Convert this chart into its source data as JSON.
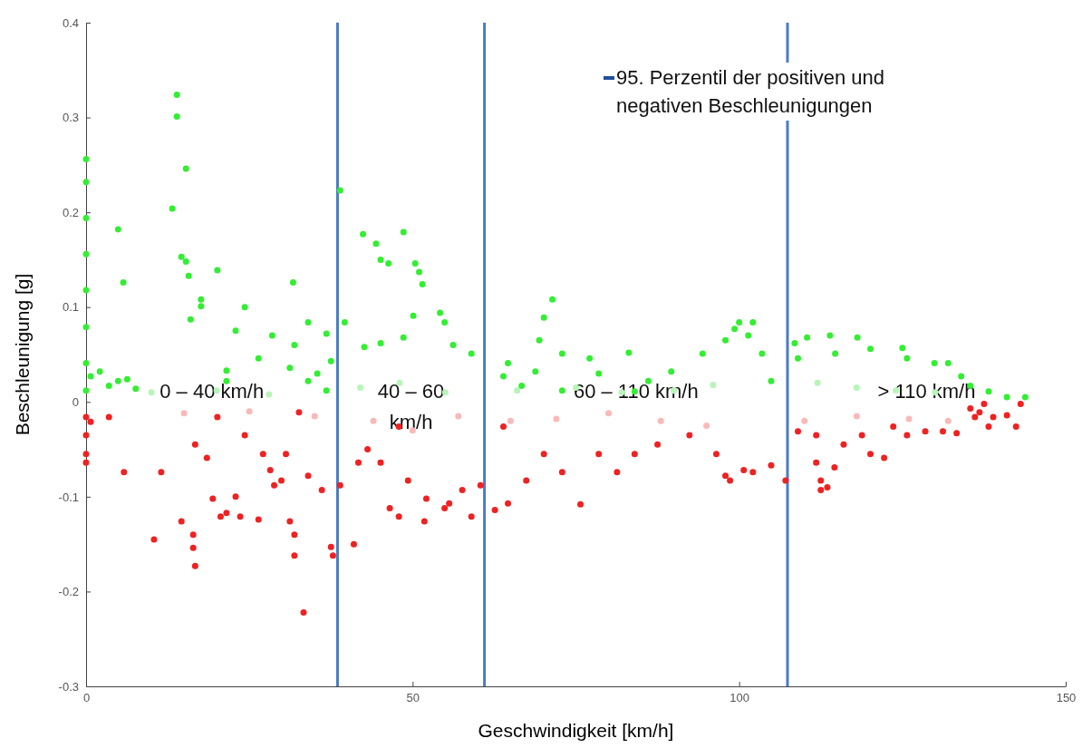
{
  "chart_data": {
    "type": "scatter",
    "xlabel": "Geschwindigkeit [km/h]",
    "ylabel": "Beschleunigung [g]",
    "xlim": [
      0,
      150
    ],
    "xticks": [
      0,
      50,
      100,
      150
    ],
    "ylim": [
      -0.3,
      0.4
    ],
    "yticks": [
      -0.3,
      -0.2,
      -0.1,
      0,
      0.1,
      0.2,
      0.3,
      0.4
    ],
    "grid": false,
    "marker": "circle",
    "ref_lines": [
      {
        "axis": "x",
        "value": 38.5,
        "color": "#4a7cc4"
      },
      {
        "axis": "x",
        "value": 61,
        "color": "#4a7cc4"
      },
      {
        "axis": "x",
        "value": 107.4,
        "color": "#4a7cc4"
      }
    ],
    "annotations": [
      "0 – 40 km/h",
      "40 – 60 km/h",
      "60 – 110 km/h",
      "> 110 km/h",
      "95. Perzentil der positiven und negativen Beschleunigungen"
    ],
    "series": [
      {
        "color": "#b8f5b8",
        "x": [
          10,
          20,
          28,
          42,
          48,
          55,
          66,
          75,
          82,
          90,
          96,
          112,
          118,
          124,
          130
        ],
        "values": [
          0.01,
          0.012,
          0.008,
          0.015,
          0.02,
          0.01,
          0.012,
          0.015,
          0.01,
          0.012,
          0.018,
          0.02,
          0.015,
          0.012,
          0.01
        ]
      },
      {
        "color": "#f9b9b9",
        "x": [
          15,
          25,
          35,
          44,
          50,
          57,
          65,
          72,
          80,
          88,
          95,
          110,
          118,
          126,
          132
        ],
        "values": [
          -0.012,
          -0.01,
          -0.015,
          -0.02,
          -0.03,
          -0.015,
          -0.02,
          -0.018,
          -0.012,
          -0.02,
          -0.025,
          -0.02,
          -0.015,
          -0.018,
          -0.02
        ]
      },
      {
        "color": "#33ee33",
        "x": [
          13.9,
          13.9,
          15.3,
          13.2,
          4.9,
          14.6,
          15.3,
          15.7,
          20.1,
          5.7,
          38.9,
          42.4,
          44.4,
          48.6,
          45.1,
          46.3,
          50.4,
          51,
          51.5,
          17.6,
          17.6,
          24.3,
          31.7,
          34,
          36.8,
          16,
          22.9,
          28.5,
          31.9,
          26.4,
          21.5,
          31.2,
          35.4,
          37.5,
          39.6,
          42.6,
          45.1,
          48.6,
          50.1,
          54.2,
          54.9,
          56.2,
          59,
          63.9,
          64.6,
          68.8,
          71.4,
          70.1,
          69.4,
          72.9,
          77.1,
          78.5,
          83.1,
          86.1,
          89.6,
          94.4,
          97.9,
          100,
          99.3,
          102.1,
          101.4,
          103.5,
          104.9,
          108.5,
          109,
          110.4,
          113.9,
          114.7,
          118.1,
          120.1,
          125,
          125.7,
          129.9,
          132,
          134,
          135.4,
          138.2,
          143.8,
          141,
          0,
          0,
          0,
          0,
          0,
          0,
          0,
          0,
          0.7,
          2.1,
          3.5,
          4.9,
          6.3,
          7.6,
          21.5,
          34,
          36.8,
          66.7,
          72.9,
          84
        ],
        "values": [
          0.324,
          0.301,
          0.246,
          0.204,
          0.182,
          0.153,
          0.148,
          0.133,
          0.139,
          0.126,
          0.223,
          0.177,
          0.167,
          0.179,
          0.15,
          0.146,
          0.146,
          0.137,
          0.124,
          0.108,
          0.101,
          0.1,
          0.126,
          0.084,
          0.072,
          0.087,
          0.075,
          0.07,
          0.06,
          0.046,
          0.033,
          0.036,
          0.03,
          0.043,
          0.084,
          0.058,
          0.062,
          0.068,
          0.091,
          0.094,
          0.084,
          0.06,
          0.051,
          0.027,
          0.041,
          0.032,
          0.108,
          0.089,
          0.065,
          0.051,
          0.046,
          0.03,
          0.052,
          0.022,
          0.032,
          0.051,
          0.065,
          0.084,
          0.077,
          0.084,
          0.07,
          0.051,
          0.022,
          0.062,
          0.046,
          0.068,
          0.07,
          0.051,
          0.068,
          0.056,
          0.057,
          0.046,
          0.041,
          0.041,
          0.027,
          0.017,
          0.011,
          0.005,
          0.005,
          0.256,
          0.232,
          0.194,
          0.156,
          0.118,
          0.079,
          0.041,
          0.012,
          0.027,
          0.032,
          0.017,
          0.022,
          0.024,
          0.014,
          0.022,
          0.022,
          0.012,
          0.017,
          0.012,
          0.011
        ]
      },
      {
        "color": "#ee2222",
        "x": [
          0,
          0,
          0,
          0,
          0.7,
          3.5,
          5.8,
          10.4,
          11.5,
          14.6,
          16.4,
          16.4,
          16.7,
          16.7,
          18.5,
          19.4,
          20.6,
          21.5,
          22.9,
          23.6,
          26.4,
          24.3,
          27.1,
          28.2,
          28.8,
          29.9,
          30.6,
          31.2,
          31.9,
          31.9,
          33.3,
          34,
          36.1,
          37.5,
          37.8,
          38.9,
          41,
          41.7,
          43.1,
          45.1,
          46.5,
          47.9,
          49.3,
          52.1,
          51.8,
          54.9,
          55.6,
          57.6,
          60.4,
          59,
          62.6,
          64.6,
          67.4,
          70.1,
          72.9,
          75.7,
          78.5,
          81.3,
          84,
          87.5,
          92.4,
          96.5,
          97.9,
          98.6,
          100.7,
          102.1,
          104.9,
          107.1,
          109,
          111.8,
          111.8,
          112.5,
          112.5,
          113.5,
          114.6,
          116,
          118.8,
          120.1,
          122.2,
          123.6,
          125.7,
          128.5,
          131.2,
          133.3,
          135.4,
          136.8,
          137.5,
          138.9,
          141,
          142.4,
          143.1,
          136.1,
          138.2,
          63.9,
          20.1,
          32.6,
          47.9
        ],
        "values": [
          -0.016,
          -0.035,
          -0.055,
          -0.064,
          -0.021,
          -0.016,
          -0.074,
          -0.145,
          -0.074,
          -0.126,
          -0.14,
          -0.154,
          -0.173,
          -0.045,
          -0.059,
          -0.102,
          -0.121,
          -0.117,
          -0.1,
          -0.121,
          -0.124,
          -0.035,
          -0.055,
          -0.072,
          -0.088,
          -0.083,
          -0.055,
          -0.126,
          -0.14,
          -0.162,
          -0.222,
          -0.078,
          -0.093,
          -0.153,
          -0.162,
          -0.088,
          -0.15,
          -0.064,
          -0.05,
          -0.064,
          -0.112,
          -0.121,
          -0.083,
          -0.102,
          -0.126,
          -0.112,
          -0.107,
          -0.093,
          -0.088,
          -0.121,
          -0.114,
          -0.107,
          -0.083,
          -0.055,
          -0.074,
          -0.108,
          -0.055,
          -0.074,
          -0.055,
          -0.045,
          -0.035,
          -0.055,
          -0.078,
          -0.083,
          -0.072,
          -0.074,
          -0.067,
          -0.083,
          -0.031,
          -0.035,
          -0.064,
          -0.083,
          -0.093,
          -0.09,
          -0.069,
          -0.045,
          -0.035,
          -0.055,
          -0.059,
          -0.026,
          -0.035,
          -0.031,
          -0.031,
          -0.033,
          -0.007,
          -0.011,
          -0.002,
          -0.016,
          -0.014,
          -0.026,
          -0.002,
          -0.016,
          -0.026,
          -0.026,
          -0.016,
          -0.011,
          -0.026
        ]
      }
    ]
  }
}
